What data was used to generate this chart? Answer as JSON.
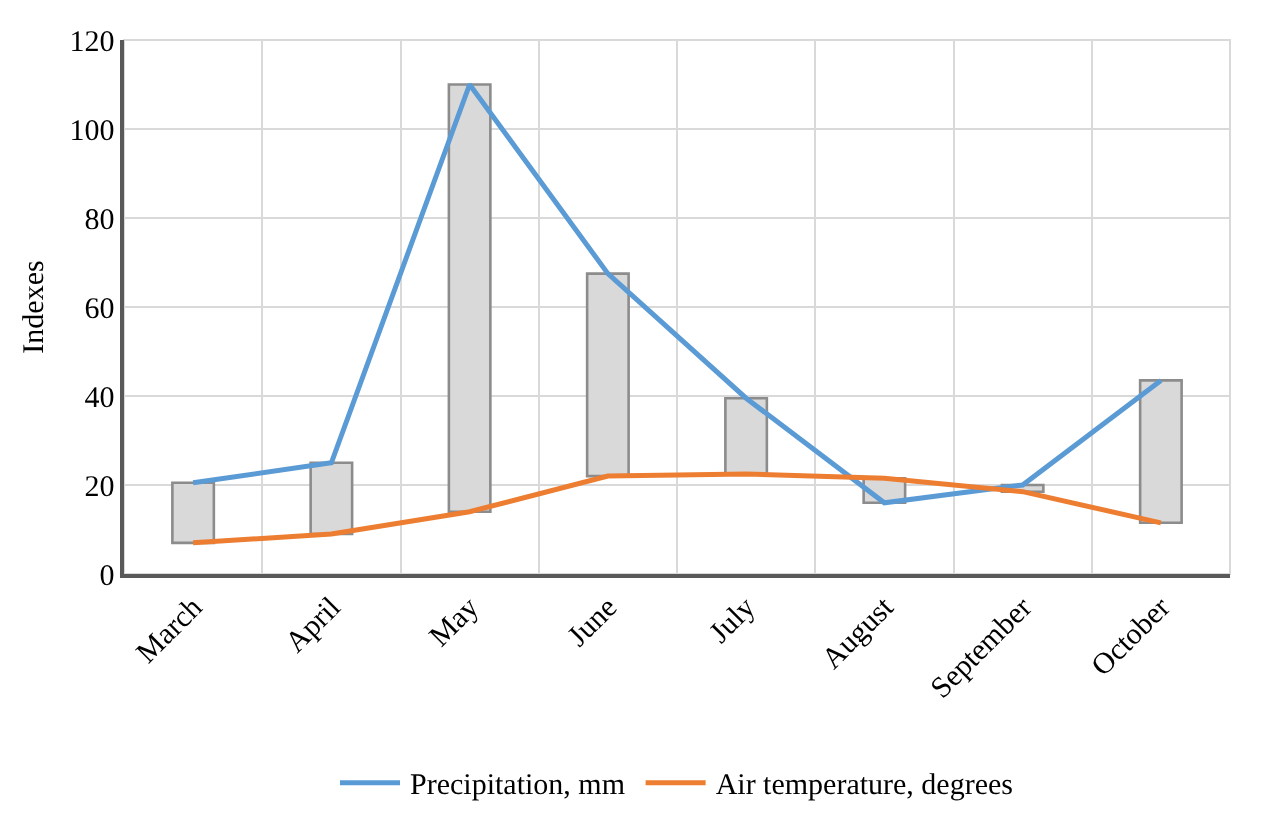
{
  "chart_data": {
    "type": "line",
    "ylabel": "Indexes",
    "categories": [
      "March",
      "April",
      "May",
      "June",
      "July",
      "August",
      "September",
      "October"
    ],
    "series": [
      {
        "type": "bar",
        "color": "#d9d9d9",
        "base": [
          7,
          9,
          14,
          22,
          22.5,
          16,
          18.5,
          11.5
        ],
        "values": [
          13.5,
          16,
          96,
          45.5,
          17,
          5.5,
          1.5,
          32
        ]
      },
      {
        "name": "Precipitation, mm",
        "color": "#5b9bd5",
        "values": [
          20.5,
          25,
          110,
          67.5,
          39.5,
          16,
          20,
          43.5
        ]
      },
      {
        "name": "Air temperature, degrees",
        "color": "#ed7d31",
        "values": [
          7,
          9,
          14,
          22,
          22.5,
          21.5,
          18.5,
          11.5
        ]
      }
    ],
    "ylim": [
      0,
      120
    ],
    "yticks": [
      0,
      20,
      40,
      60,
      80,
      100,
      120
    ],
    "grid": true,
    "legend": "bottom",
    "marker": "none",
    "line_style": "solid"
  }
}
